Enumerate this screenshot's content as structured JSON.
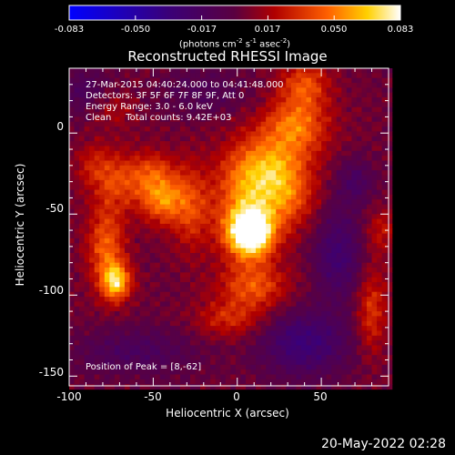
{
  "chart_data": {
    "type": "heatmap",
    "title": "Reconstructed RHESSI Image",
    "xlabel": "Heliocentric X (arcsec)",
    "ylabel": "Heliocentric Y (arcsec)",
    "xlim": [
      -100,
      90
    ],
    "ylim": [
      -156,
      40
    ],
    "xticks": [
      -100,
      -50,
      0,
      50
    ],
    "yticks": [
      0,
      -50,
      -100,
      -150
    ],
    "colorbar": {
      "ticks": [
        "-0.083",
        "-0.050",
        "-0.017",
        "0.017",
        "0.050",
        "0.083"
      ],
      "range": [
        -0.083,
        0.083
      ],
      "unit_parts": [
        "(photons cm",
        "-2",
        " s",
        "-1",
        " asec",
        "-2",
        ")"
      ]
    },
    "annotations": [
      "27-Mar-2015 04:40:24.000 to 04:41:48.000",
      "Detectors: 3F 5F 6F 7F 8F 9F, Att 0",
      "Energy Range: 3.0 - 6.0 keV",
      "Clean     Total counts: 9.42E+03"
    ],
    "peak_label": "Position of Peak = [8,-62]",
    "peak": [
      8,
      -62
    ],
    "date_stamp": "20-May-2022 02:28",
    "sources": [
      {
        "x": 8,
        "y": -62,
        "amp": 0.083,
        "sx": 9,
        "sy": 10
      },
      {
        "x": 5,
        "y": -45,
        "amp": 0.045,
        "sx": 14,
        "sy": 22
      },
      {
        "x": 20,
        "y": -20,
        "amp": 0.04,
        "sx": 16,
        "sy": 14
      },
      {
        "x": 35,
        "y": 5,
        "amp": 0.042,
        "sx": 14,
        "sy": 12
      },
      {
        "x": 40,
        "y": 30,
        "amp": 0.035,
        "sx": 10,
        "sy": 10
      },
      {
        "x": 30,
        "y": -40,
        "amp": 0.03,
        "sx": 12,
        "sy": 14
      },
      {
        "x": 10,
        "y": -95,
        "amp": 0.035,
        "sx": 14,
        "sy": 10
      },
      {
        "x": -72,
        "y": -92,
        "amp": 0.06,
        "sx": 6,
        "sy": 8
      },
      {
        "x": -78,
        "y": -70,
        "amp": 0.04,
        "sx": 8,
        "sy": 18
      },
      {
        "x": -45,
        "y": -42,
        "amp": 0.042,
        "sx": 9,
        "sy": 10
      },
      {
        "x": -50,
        "y": -25,
        "amp": 0.03,
        "sx": 10,
        "sy": 10
      },
      {
        "x": -70,
        "y": -30,
        "amp": 0.028,
        "sx": 10,
        "sy": 12
      },
      {
        "x": -28,
        "y": -45,
        "amp": 0.03,
        "sx": 8,
        "sy": 18
      },
      {
        "x": -85,
        "y": -20,
        "amp": 0.02,
        "sx": 8,
        "sy": 10
      },
      {
        "x": -5,
        "y": -115,
        "amp": 0.025,
        "sx": 14,
        "sy": 8
      },
      {
        "x": 80,
        "y": -110,
        "amp": 0.03,
        "sx": 6,
        "sy": 18
      },
      {
        "x": 85,
        "y": -60,
        "amp": 0.02,
        "sx": 6,
        "sy": 10
      },
      {
        "x": -75,
        "y": 15,
        "amp": 0.015,
        "sx": 10,
        "sy": 8
      },
      {
        "x": -60,
        "y": -135,
        "amp": -0.02,
        "sx": 25,
        "sy": 10
      },
      {
        "x": 40,
        "y": -130,
        "amp": -0.035,
        "sx": 18,
        "sy": 14
      },
      {
        "x": 60,
        "y": -75,
        "amp": -0.03,
        "sx": 10,
        "sy": 20
      },
      {
        "x": -90,
        "y": 25,
        "amp": -0.02,
        "sx": 10,
        "sy": 10
      },
      {
        "x": 70,
        "y": -30,
        "amp": -0.02,
        "sx": 8,
        "sy": 10
      },
      {
        "x": -20,
        "y": 25,
        "amp": -0.015,
        "sx": 18,
        "sy": 10
      }
    ]
  }
}
